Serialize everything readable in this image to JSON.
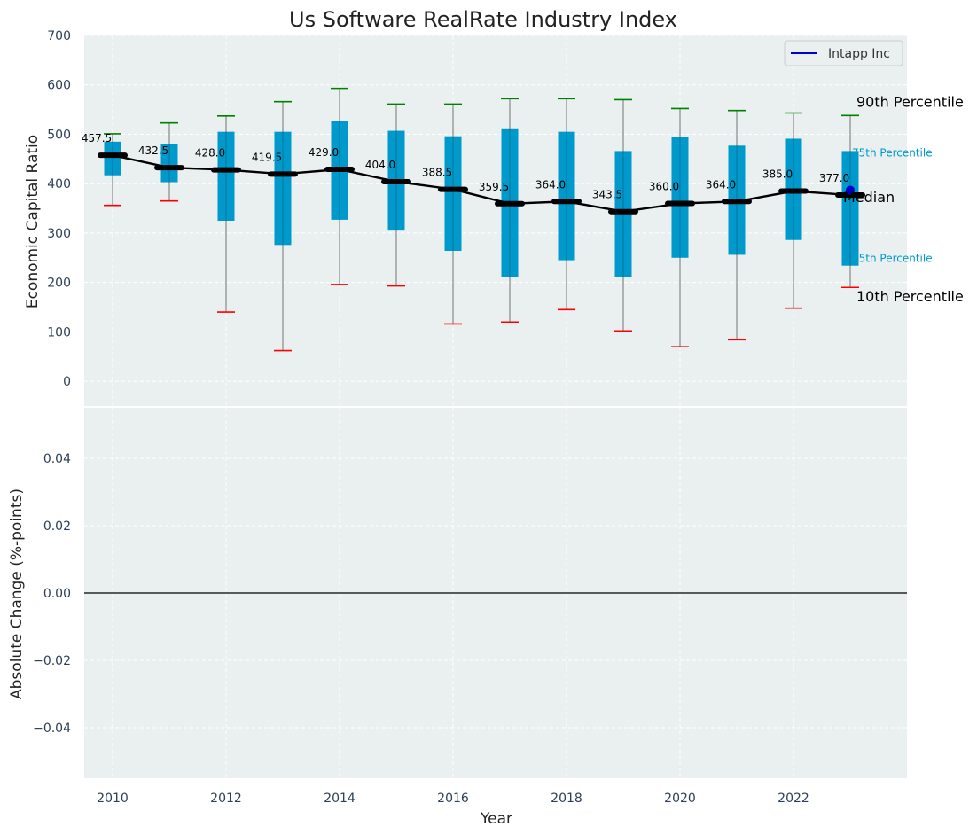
{
  "chart_data": [
    {
      "type": "boxplot",
      "title": "Us Software RealRate Industry Index",
      "xlabel": "",
      "ylabel": "Economic Capital Ratio",
      "ylim": [
        -50,
        700
      ],
      "yticks": [
        0,
        100,
        200,
        300,
        400,
        500,
        600,
        700
      ],
      "grid": true,
      "legend": {
        "position": "top-right",
        "entries": [
          {
            "label": "Intapp Inc",
            "color": "#0000cc"
          }
        ]
      },
      "years": [
        2010,
        2011,
        2012,
        2013,
        2014,
        2015,
        2016,
        2017,
        2018,
        2019,
        2020,
        2021,
        2022,
        2023
      ],
      "p10": [
        356,
        365,
        140,
        62,
        196,
        193,
        116,
        120,
        145,
        102,
        70,
        84,
        148,
        190
      ],
      "p25": [
        417,
        403,
        325,
        276,
        327,
        305,
        264,
        211,
        245,
        211,
        250,
        256,
        286,
        234
      ],
      "median": [
        457.5,
        432.5,
        428.0,
        419.5,
        429.0,
        404.0,
        388.5,
        359.5,
        364.0,
        343.5,
        360.0,
        364.0,
        385.0,
        377.0
      ],
      "median_labels": [
        "457.5",
        "432.5",
        "428.0",
        "419.5",
        "429.0",
        "404.0",
        "388.5",
        "359.5",
        "364.0",
        "343.5",
        "360.0",
        "364.0",
        "385.0",
        "377.0"
      ],
      "p75": [
        485,
        480,
        505,
        505,
        527,
        507,
        496,
        512,
        505,
        466,
        494,
        477,
        491,
        466
      ],
      "p90": [
        501,
        523,
        537,
        566,
        593,
        561,
        561,
        572,
        572,
        570,
        552,
        548,
        543,
        538
      ],
      "company": {
        "name": "Intapp Inc",
        "year": 2023,
        "value": 387
      },
      "annotations": {
        "p90": "90th Percentile",
        "p75": "75th Percentile",
        "median": "Median",
        "p25": "25th Percentile",
        "p10": "10th Percentile"
      },
      "colors": {
        "box": "#0099cc",
        "p90": "#008000",
        "p10": "#ff0000",
        "median": "#000000",
        "company": "#0000cc",
        "background": "#eaeff0"
      }
    },
    {
      "type": "line",
      "xlabel": "Year",
      "ylabel": "Absolute Change (%-points)",
      "ylim": [
        -0.055,
        0.055
      ],
      "yticks": [
        -0.04,
        -0.02,
        0.0,
        0.02,
        0.04
      ],
      "ytick_labels": [
        "−0.04",
        "−0.02",
        "0.00",
        "0.02",
        "0.04"
      ],
      "xticks": [
        2010,
        2012,
        2014,
        2016,
        2018,
        2020,
        2022
      ],
      "xlim": [
        2009.5,
        2024
      ],
      "grid": true,
      "series": [
        {
          "values": []
        }
      ],
      "reference_line": 0.0
    }
  ]
}
